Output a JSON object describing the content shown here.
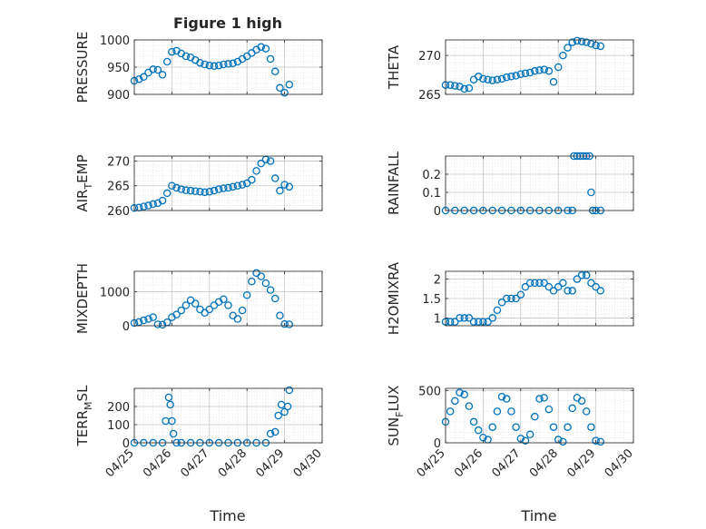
{
  "figure": {
    "title": "Figure 1 high",
    "xlabel": "Time",
    "marker_color": "#0072BD",
    "grid_color": "#c8c8c8",
    "axis_color": "#262626"
  },
  "chart_data": [
    {
      "type": "scatter",
      "marker": "circle",
      "title": "Figure 1 high",
      "ylabel": "PRESSURE",
      "ylabel_sub": null,
      "xlim": [
        "04/25",
        "04/30"
      ],
      "xticks": [
        "04/25",
        "04/26",
        "04/27",
        "04/28",
        "04/29",
        "04/30"
      ],
      "ylim": [
        900,
        1000
      ],
      "yticks": [
        "900",
        "950",
        "1000"
      ],
      "grid": true,
      "x": [
        "04/25 00:00",
        "04/25 03:00",
        "04/25 06:00",
        "04/25 09:00",
        "04/25 12:00",
        "04/25 15:00",
        "04/25 18:00",
        "04/25 21:00",
        "04/26 00:00",
        "04/26 03:00",
        "04/26 06:00",
        "04/26 09:00",
        "04/26 12:00",
        "04/26 15:00",
        "04/26 18:00",
        "04/26 21:00",
        "04/27 00:00",
        "04/27 03:00",
        "04/27 06:00",
        "04/27 09:00",
        "04/27 12:00",
        "04/27 15:00",
        "04/27 18:00",
        "04/27 21:00",
        "04/28 00:00",
        "04/28 03:00",
        "04/28 06:00",
        "04/28 09:00",
        "04/28 12:00",
        "04/28 15:00",
        "04/28 18:00",
        "04/28 21:00",
        "04/29 00:00",
        "04/29 03:00"
      ],
      "y": [
        925,
        928,
        932,
        940,
        946,
        945,
        936,
        960,
        978,
        980,
        975,
        970,
        968,
        963,
        958,
        955,
        953,
        952,
        953,
        955,
        956,
        957,
        960,
        965,
        970,
        976,
        982,
        987,
        984,
        965,
        942,
        912,
        903,
        918
      ]
    },
    {
      "type": "scatter",
      "marker": "circle",
      "ylabel": "THETA",
      "ylabel_sub": null,
      "xlim": [
        "04/25",
        "04/30"
      ],
      "xticks": [
        "04/25",
        "04/26",
        "04/27",
        "04/28",
        "04/29",
        "04/30"
      ],
      "ylim": [
        265,
        272
      ],
      "yticks": [
        "265",
        "270"
      ],
      "grid": true,
      "x": [
        "04/25 00:00",
        "04/25 03:00",
        "04/25 06:00",
        "04/25 09:00",
        "04/25 12:00",
        "04/25 15:00",
        "04/25 18:00",
        "04/25 21:00",
        "04/26 00:00",
        "04/26 03:00",
        "04/26 06:00",
        "04/26 09:00",
        "04/26 12:00",
        "04/26 15:00",
        "04/26 18:00",
        "04/26 21:00",
        "04/27 00:00",
        "04/27 03:00",
        "04/27 06:00",
        "04/27 09:00",
        "04/27 12:00",
        "04/27 15:00",
        "04/27 18:00",
        "04/27 21:00",
        "04/28 00:00",
        "04/28 03:00",
        "04/28 06:00",
        "04/28 09:00",
        "04/28 12:00",
        "04/28 15:00",
        "04/28 18:00",
        "04/28 21:00",
        "04/29 00:00",
        "04/29 03:00"
      ],
      "y": [
        266.2,
        266.2,
        266.1,
        266.0,
        265.7,
        265.8,
        266.9,
        267.3,
        267.0,
        266.9,
        266.8,
        266.9,
        267.0,
        267.2,
        267.3,
        267.4,
        267.6,
        267.7,
        267.8,
        268.0,
        268.1,
        268.2,
        268.0,
        266.6,
        268.5,
        270.0,
        271.0,
        271.7,
        271.9,
        271.8,
        271.7,
        271.5,
        271.3,
        271.2
      ]
    },
    {
      "type": "scatter",
      "marker": "circle",
      "ylabel": "AIR",
      "ylabel_sub": "T",
      "ylabel_rest": "EMP",
      "xlim": [
        "04/25",
        "04/30"
      ],
      "xticks": [
        "04/25",
        "04/26",
        "04/27",
        "04/28",
        "04/29",
        "04/30"
      ],
      "ylim": [
        260,
        271
      ],
      "yticks": [
        "260",
        "265",
        "270"
      ],
      "grid": true,
      "x": [
        "04/25 00:00",
        "04/25 03:00",
        "04/25 06:00",
        "04/25 09:00",
        "04/25 12:00",
        "04/25 15:00",
        "04/25 18:00",
        "04/25 21:00",
        "04/26 00:00",
        "04/26 03:00",
        "04/26 06:00",
        "04/26 09:00",
        "04/26 12:00",
        "04/26 15:00",
        "04/26 18:00",
        "04/26 21:00",
        "04/27 00:00",
        "04/27 03:00",
        "04/27 06:00",
        "04/27 09:00",
        "04/27 12:00",
        "04/27 15:00",
        "04/27 18:00",
        "04/27 21:00",
        "04/28 00:00",
        "04/28 03:00",
        "04/28 06:00",
        "04/28 09:00",
        "04/28 12:00",
        "04/28 15:00",
        "04/28 18:00",
        "04/28 21:00",
        "04/29 00:00",
        "04/29 03:00"
      ],
      "y": [
        260.5,
        260.6,
        260.8,
        261.0,
        261.3,
        261.5,
        262.0,
        263.5,
        265.0,
        264.6,
        264.3,
        264.1,
        264.0,
        263.9,
        263.8,
        263.7,
        263.8,
        264.0,
        264.3,
        264.5,
        264.6,
        264.8,
        265.0,
        265.2,
        265.5,
        266.2,
        268.0,
        269.5,
        270.3,
        270.0,
        266.5,
        264.0,
        265.2,
        264.8
      ]
    },
    {
      "type": "scatter",
      "marker": "circle",
      "ylabel": "RAINFALL",
      "ylabel_sub": null,
      "xlim": [
        "04/25",
        "04/30"
      ],
      "xticks": [
        "04/25",
        "04/26",
        "04/27",
        "04/28",
        "04/29",
        "04/30"
      ],
      "ylim": [
        0,
        0.3
      ],
      "yticks": [
        "0",
        "0.1",
        "0.2"
      ],
      "grid": true,
      "x": [
        "04/25 00:00",
        "04/25 06:00",
        "04/25 12:00",
        "04/25 18:00",
        "04/26 00:00",
        "04/26 06:00",
        "04/26 12:00",
        "04/26 18:00",
        "04/27 00:00",
        "04/27 06:00",
        "04/27 12:00",
        "04/27 18:00",
        "04/28 00:00",
        "04/28 06:00",
        "04/28 09:00",
        "04/28 10:00",
        "04/28 12:00",
        "04/28 14:00",
        "04/28 16:00",
        "04/28 18:00",
        "04/28 20:00",
        "04/28 21:00",
        "04/28 22:00",
        "04/29 00:00",
        "04/29 03:00"
      ],
      "y": [
        0,
        0,
        0,
        0,
        0,
        0,
        0,
        0,
        0,
        0,
        0,
        0,
        0,
        0,
        0,
        0.3,
        0.3,
        0.3,
        0.3,
        0.3,
        0.3,
        0.1,
        0,
        0,
        0
      ]
    },
    {
      "type": "scatter",
      "marker": "circle",
      "ylabel": "MIXDEPTH",
      "ylabel_sub": null,
      "xlim": [
        "04/25",
        "04/30"
      ],
      "xticks": [
        "04/25",
        "04/26",
        "04/27",
        "04/28",
        "04/29",
        "04/30"
      ],
      "ylim": [
        0,
        1600
      ],
      "yticks": [
        "0",
        "1000"
      ],
      "grid": true,
      "x": [
        "04/25 00:00",
        "04/25 03:00",
        "04/25 06:00",
        "04/25 09:00",
        "04/25 12:00",
        "04/25 15:00",
        "04/25 18:00",
        "04/25 21:00",
        "04/26 00:00",
        "04/26 03:00",
        "04/26 06:00",
        "04/26 09:00",
        "04/26 12:00",
        "04/26 15:00",
        "04/26 18:00",
        "04/26 21:00",
        "04/27 00:00",
        "04/27 03:00",
        "04/27 06:00",
        "04/27 09:00",
        "04/27 12:00",
        "04/27 15:00",
        "04/27 18:00",
        "04/27 21:00",
        "04/28 00:00",
        "04/28 03:00",
        "04/28 06:00",
        "04/28 09:00",
        "04/28 12:00",
        "04/28 15:00",
        "04/28 18:00",
        "04/28 21:00",
        "04/29 00:00",
        "04/29 03:00"
      ],
      "y": [
        80,
        110,
        160,
        200,
        250,
        40,
        30,
        100,
        250,
        330,
        450,
        600,
        750,
        650,
        480,
        380,
        480,
        600,
        700,
        780,
        600,
        300,
        200,
        450,
        900,
        1300,
        1550,
        1450,
        1250,
        1050,
        800,
        300,
        50,
        40
      ]
    },
    {
      "type": "scatter",
      "marker": "circle",
      "ylabel": "H2OMIXRA",
      "ylabel_sub": null,
      "xlim": [
        "04/25",
        "04/30"
      ],
      "xticks": [
        "04/25",
        "04/26",
        "04/27",
        "04/28",
        "04/29",
        "04/30"
      ],
      "ylim": [
        0.8,
        2.2
      ],
      "yticks": [
        "1",
        "1.5",
        "2"
      ],
      "grid": true,
      "x": [
        "04/25 00:00",
        "04/25 03:00",
        "04/25 06:00",
        "04/25 09:00",
        "04/25 12:00",
        "04/25 15:00",
        "04/25 18:00",
        "04/25 21:00",
        "04/26 00:00",
        "04/26 03:00",
        "04/26 06:00",
        "04/26 09:00",
        "04/26 12:00",
        "04/26 15:00",
        "04/26 18:00",
        "04/26 21:00",
        "04/27 00:00",
        "04/27 03:00",
        "04/27 06:00",
        "04/27 09:00",
        "04/27 12:00",
        "04/27 15:00",
        "04/27 18:00",
        "04/27 21:00",
        "04/28 00:00",
        "04/28 03:00",
        "04/28 06:00",
        "04/28 09:00",
        "04/28 12:00",
        "04/28 15:00",
        "04/28 18:00",
        "04/28 21:00",
        "04/29 00:00",
        "04/29 03:00"
      ],
      "y": [
        0.9,
        0.9,
        0.9,
        1.0,
        1.0,
        1.0,
        0.9,
        0.9,
        0.9,
        0.9,
        1.0,
        1.2,
        1.4,
        1.5,
        1.5,
        1.5,
        1.6,
        1.8,
        1.9,
        1.9,
        1.9,
        1.9,
        1.8,
        1.7,
        1.8,
        1.9,
        1.7,
        1.7,
        2.0,
        2.1,
        2.1,
        1.9,
        1.8,
        1.7
      ]
    },
    {
      "type": "scatter",
      "marker": "circle",
      "ylabel": "TERR",
      "ylabel_sub": "M",
      "ylabel_rest": "SL",
      "xlim": [
        "04/25",
        "04/30"
      ],
      "xticks": [
        "04/25",
        "04/26",
        "04/27",
        "04/28",
        "04/29",
        "04/30"
      ],
      "ylim": [
        0,
        300
      ],
      "yticks": [
        "0",
        "100",
        "200"
      ],
      "grid": true,
      "x": [
        "04/25 00:00",
        "04/25 06:00",
        "04/25 12:00",
        "04/25 18:00",
        "04/25 20:00",
        "04/25 22:00",
        "04/25 23:00",
        "04/26 00:00",
        "04/26 01:00",
        "04/26 03:00",
        "04/26 06:00",
        "04/26 12:00",
        "04/26 18:00",
        "04/27 00:00",
        "04/27 06:00",
        "04/27 12:00",
        "04/27 18:00",
        "04/28 00:00",
        "04/28 06:00",
        "04/28 12:00",
        "04/28 15:00",
        "04/28 18:00",
        "04/28 20:00",
        "04/28 22:00",
        "04/29 00:00",
        "04/29 02:00",
        "04/29 03:00"
      ],
      "y": [
        0,
        0,
        0,
        0,
        120,
        250,
        210,
        120,
        50,
        0,
        0,
        0,
        0,
        0,
        0,
        0,
        0,
        0,
        0,
        0,
        50,
        60,
        150,
        210,
        170,
        200,
        290
      ]
    },
    {
      "type": "scatter",
      "marker": "circle",
      "ylabel": "SUN",
      "ylabel_sub": "F",
      "ylabel_rest": "LUX",
      "xlim": [
        "04/25",
        "04/30"
      ],
      "xticks": [
        "04/25",
        "04/26",
        "04/27",
        "04/28",
        "04/29",
        "04/30"
      ],
      "ylim": [
        0,
        520
      ],
      "yticks": [
        "0",
        "500"
      ],
      "grid": true,
      "x": [
        "04/25 00:00",
        "04/25 03:00",
        "04/25 06:00",
        "04/25 09:00",
        "04/25 12:00",
        "04/25 15:00",
        "04/25 18:00",
        "04/25 21:00",
        "04/26 00:00",
        "04/26 03:00",
        "04/26 06:00",
        "04/26 09:00",
        "04/26 12:00",
        "04/26 15:00",
        "04/26 18:00",
        "04/26 21:00",
        "04/27 00:00",
        "04/27 03:00",
        "04/27 06:00",
        "04/27 09:00",
        "04/27 12:00",
        "04/27 15:00",
        "04/27 18:00",
        "04/27 21:00",
        "04/28 00:00",
        "04/28 03:00",
        "04/28 06:00",
        "04/28 09:00",
        "04/28 12:00",
        "04/28 15:00",
        "04/28 18:00",
        "04/28 21:00",
        "04/29 00:00",
        "04/29 03:00"
      ],
      "y": [
        200,
        300,
        400,
        480,
        460,
        350,
        200,
        120,
        50,
        30,
        150,
        300,
        440,
        420,
        300,
        150,
        40,
        20,
        80,
        250,
        420,
        430,
        320,
        150,
        30,
        10,
        150,
        330,
        430,
        400,
        300,
        150,
        20,
        10
      ]
    }
  ]
}
